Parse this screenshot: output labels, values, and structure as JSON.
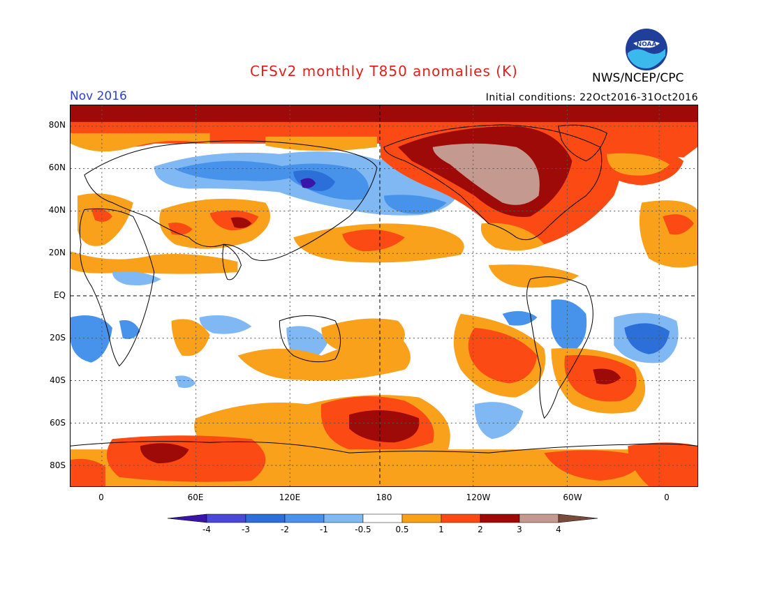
{
  "header": {
    "title": "CFSv2 monthly T850 anomalies (K)",
    "month": "Nov 2016",
    "initial_conditions": "Initial conditions: 22Oct2016-31Oct2016",
    "organization": "NWS/NCEP/CPC",
    "logo_text": "NOAA"
  },
  "axes": {
    "lat_labels": [
      "80N",
      "60N",
      "40N",
      "20N",
      "EQ",
      "20S",
      "40S",
      "60S",
      "80S"
    ],
    "lat_values": [
      80,
      60,
      40,
      20,
      0,
      -20,
      -40,
      -60,
      -80
    ],
    "lon_labels": [
      "0",
      "60E",
      "120E",
      "180",
      "120W",
      "60W",
      "0"
    ],
    "lon_values": [
      0,
      60,
      120,
      180,
      240,
      300,
      360
    ]
  },
  "legend": {
    "labels": [
      "-4",
      "-3",
      "-2",
      "-1",
      "-0.5",
      "0.5",
      "1",
      "2",
      "3",
      "4"
    ],
    "colors": [
      "#3a16a8",
      "#4b48d6",
      "#2d6fd8",
      "#4792ea",
      "#7fb8f2",
      "#ffffff",
      "#f9a11a",
      "#fb4a14",
      "#9e0a08",
      "#c49a90",
      "#7a4a3a"
    ]
  },
  "colors": {
    "title": "#e0201a",
    "month": "#2b3fd8",
    "warm1": "#f9a11a",
    "warm2": "#fb4a14",
    "warm3": "#9e0a08",
    "warm4": "#c49a90",
    "cool1": "#7fb8f2",
    "cool2": "#4792ea",
    "cool3": "#2d6fd8"
  }
}
